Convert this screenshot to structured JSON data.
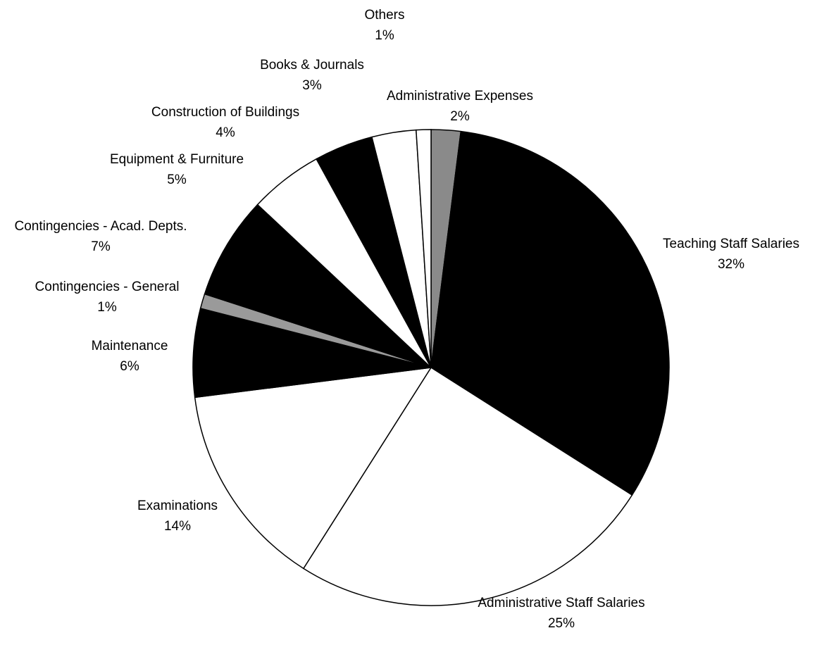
{
  "chart_data": {
    "type": "pie",
    "categories": [
      "Administrative Expenses",
      "Teaching Staff Salaries",
      "Administrative Staff Salaries",
      "Examinations",
      "Maintenance",
      "Contingencies - General",
      "Contingencies - Acad. Depts.",
      "Equipment & Furniture",
      "Construction of Buildings",
      "Books & Journals",
      "Others"
    ],
    "values": [
      2,
      32,
      25,
      14,
      6,
      1,
      7,
      5,
      4,
      3,
      1
    ],
    "value_labels": [
      "2%",
      "32%",
      "25%",
      "14%",
      "6%",
      "1%",
      "7%",
      "5%",
      "4%",
      "3%",
      "1%"
    ],
    "colors": [
      "#8a8a8a",
      "#000000",
      "#ffffff",
      "#ffffff",
      "#000000",
      "#9a9a9a",
      "#000000",
      "#ffffff",
      "#000000",
      "#ffffff",
      "#ffffff"
    ]
  }
}
